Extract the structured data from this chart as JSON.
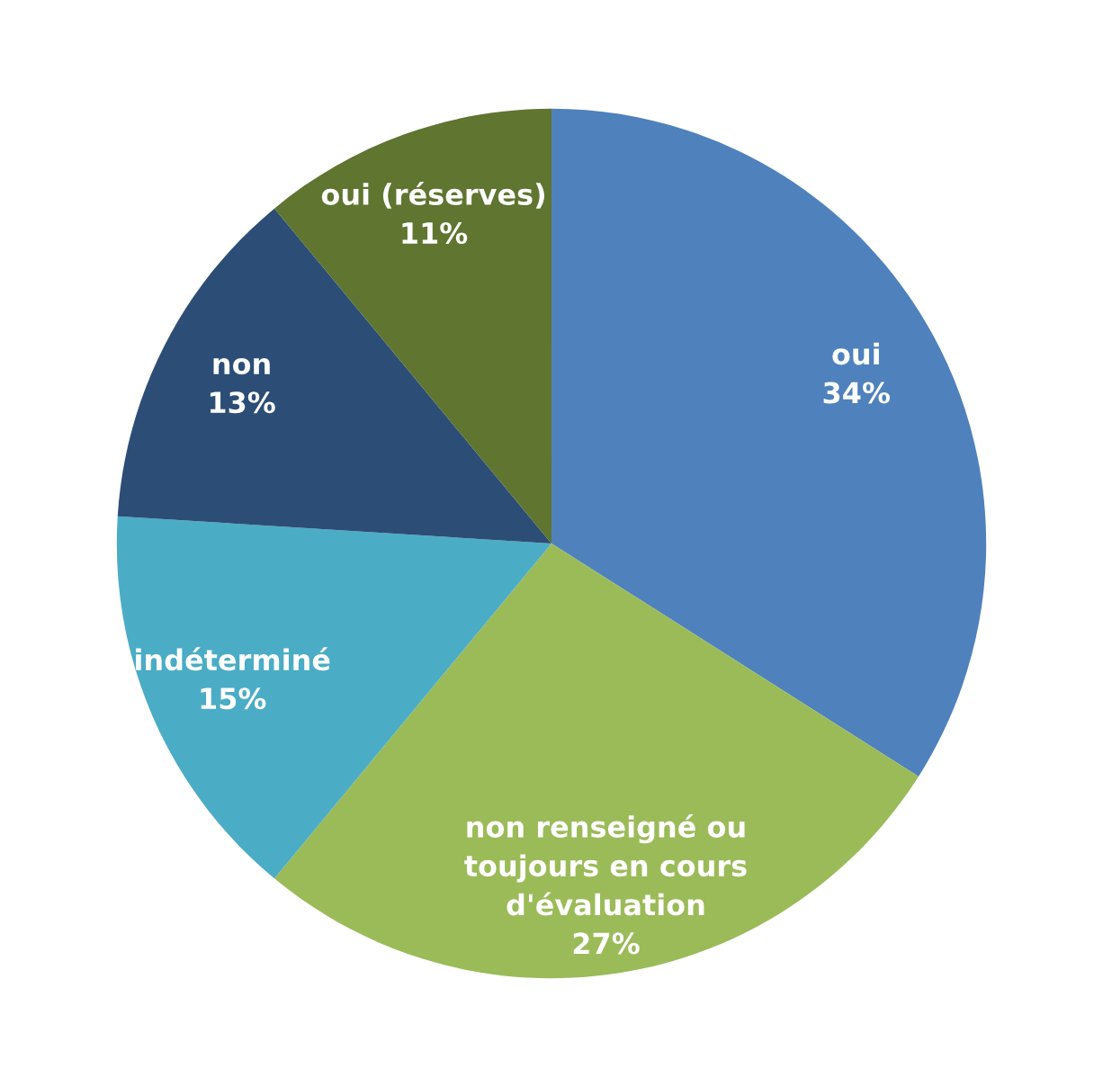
{
  "chart_data": {
    "type": "pie",
    "categories": [
      "oui",
      "non renseigné ou\ntoujours en cours\nd'évaluation",
      "indéterminé",
      "non",
      "oui (réserves)"
    ],
    "values": [
      34,
      27,
      15,
      13,
      11
    ],
    "value_labels": [
      "34%",
      "27%",
      "15%",
      "13%",
      "11%"
    ],
    "colors": [
      "#4f81bd",
      "#9bbb59",
      "#4bacc6",
      "#2c4d75",
      "#5f7530"
    ]
  }
}
